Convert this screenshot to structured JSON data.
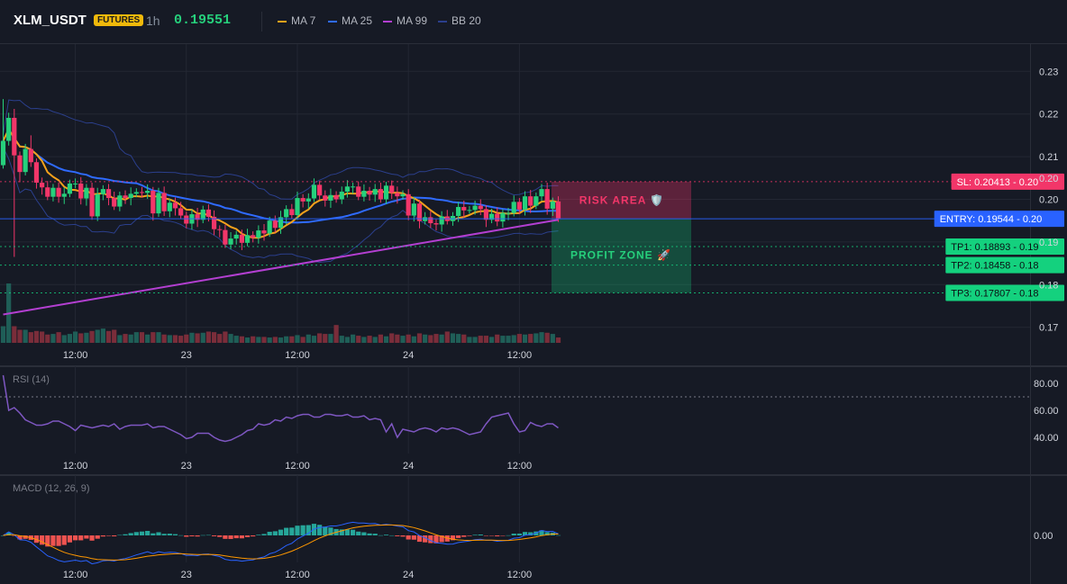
{
  "header": {
    "symbol": "XLM_USDT",
    "badge": "FUTURES",
    "timeframe": "1h",
    "price": "0.19551",
    "legend": [
      {
        "label": "MA 7",
        "color": "#f7a21b"
      },
      {
        "label": "MA 25",
        "color": "#2f6bff"
      },
      {
        "label": "MA 99",
        "color": "#b33fd1"
      },
      {
        "label": "BB 20",
        "color": "#2b3f8c"
      }
    ]
  },
  "colors": {
    "up": "#26d07c",
    "down": "#f23669",
    "vol_up": "#1f5e57",
    "vol_down": "#7a2d3a",
    "grid": "#232733",
    "axis_text": "#d1d4dc",
    "rsi": "#7e57c2",
    "macd_line": "#2962ff",
    "signal_line": "#ff9800",
    "hist_pos": "#26a69a",
    "hist_neg": "#ef5350"
  },
  "chart_data": [
    {
      "type": "candlestick",
      "title": "XLM_USDT 1h",
      "ylim": [
        0.165,
        0.235
      ],
      "y_ticks": [
        {
          "v": 0.17,
          "label": "0.17"
        },
        {
          "v": 0.18,
          "label": "0.18"
        },
        {
          "v": 0.19,
          "label": "0.19"
        },
        {
          "v": 0.2,
          "label": "0.20"
        },
        {
          "v": 0.205,
          "label": "0.20"
        },
        {
          "v": 0.21,
          "label": "0.21"
        },
        {
          "v": 0.22,
          "label": "0.22"
        },
        {
          "v": 0.23,
          "label": "0.23"
        }
      ],
      "x_ticks": [
        {
          "i": 13,
          "label": "12:00"
        },
        {
          "i": 33,
          "label": "23"
        },
        {
          "i": 53,
          "label": "12:00"
        },
        {
          "i": 73,
          "label": "24"
        },
        {
          "i": 93,
          "label": "12:00"
        }
      ],
      "close": [
        0.2137,
        0.2191,
        0.2103,
        0.2064,
        0.2118,
        0.2087,
        0.2039,
        0.2028,
        0.2006,
        0.2027,
        0.2006,
        0.2013,
        0.2037,
        0.2037,
        0.2002,
        0.2027,
        0.196,
        0.2012,
        0.2024,
        0.2003,
        0.1983,
        0.2009,
        0.2003,
        0.2013,
        0.2017,
        0.2015,
        0.202,
        0.1967,
        0.2015,
        0.1972,
        0.1992,
        0.1979,
        0.1962,
        0.1943,
        0.1965,
        0.1952,
        0.1976,
        0.1959,
        0.193,
        0.1928,
        0.1894,
        0.1908,
        0.1917,
        0.1898,
        0.1916,
        0.191,
        0.1927,
        0.192,
        0.195,
        0.1933,
        0.1958,
        0.1977,
        0.1963,
        0.2003,
        0.1995,
        0.2002,
        0.2034,
        0.2009,
        0.1997,
        0.201,
        0.2,
        0.2018,
        0.203,
        0.203,
        0.2006,
        0.202,
        0.2011,
        0.2024,
        0.2,
        0.2032,
        0.2015,
        0.2007,
        0.2012,
        0.1962,
        0.199,
        0.1949,
        0.1958,
        0.1944,
        0.1941,
        0.196,
        0.1949,
        0.1961,
        0.1982,
        0.1974,
        0.1975,
        0.1985,
        0.1977,
        0.1952,
        0.1966,
        0.1948,
        0.1968,
        0.1968,
        0.1994,
        0.1976,
        0.2007,
        0.1985,
        0.2007,
        0.2024,
        0.1978,
        0.1995,
        0.1955
      ],
      "volume": [
        0.28,
        1.0,
        0.28,
        0.22,
        0.22,
        0.18,
        0.2,
        0.19,
        0.14,
        0.15,
        0.18,
        0.13,
        0.15,
        0.19,
        0.16,
        0.17,
        0.2,
        0.22,
        0.24,
        0.2,
        0.22,
        0.13,
        0.15,
        0.14,
        0.18,
        0.18,
        0.14,
        0.18,
        0.18,
        0.14,
        0.13,
        0.13,
        0.12,
        0.14,
        0.17,
        0.16,
        0.17,
        0.19,
        0.18,
        0.15,
        0.19,
        0.15,
        0.12,
        0.11,
        0.09,
        0.11,
        0.1,
        0.1,
        0.09,
        0.1,
        0.09,
        0.11,
        0.11,
        0.13,
        0.1,
        0.14,
        0.12,
        0.16,
        0.15,
        0.15,
        0.3,
        0.12,
        0.1,
        0.14,
        0.12,
        0.1,
        0.12,
        0.1,
        0.14,
        0.11,
        0.16,
        0.14,
        0.12,
        0.14,
        0.11,
        0.16,
        0.14,
        0.13,
        0.15,
        0.14,
        0.19,
        0.16,
        0.15,
        0.14,
        0.1,
        0.1,
        0.12,
        0.12,
        0.1,
        0.14,
        0.12,
        0.12,
        0.13,
        0.15,
        0.14,
        0.15,
        0.16,
        0.18,
        0.17,
        0.15,
        0.09
      ]
    },
    {
      "type": "line",
      "name": "RSI (14)",
      "ylim": [
        30,
        90
      ],
      "y_ticks": [
        {
          "v": 80,
          "label": "80.00"
        },
        {
          "v": 60,
          "label": "60.00"
        },
        {
          "v": 40,
          "label": "40.00"
        }
      ],
      "overbought": 70,
      "values": [
        86,
        60,
        62,
        58,
        53,
        51,
        49,
        49,
        50,
        52,
        52,
        50,
        48,
        45,
        49,
        48,
        47,
        48,
        49,
        48,
        50,
        46,
        48,
        49,
        49,
        49,
        50,
        47,
        48,
        48,
        46,
        44,
        42,
        39,
        40,
        43,
        43,
        43,
        40,
        38,
        37,
        38,
        40,
        42,
        45,
        46,
        50,
        49,
        50,
        53,
        52,
        55,
        54,
        56,
        57,
        57,
        55,
        55,
        57,
        57,
        56,
        56,
        57,
        55,
        55,
        56,
        53,
        54,
        53,
        44,
        50,
        40,
        46,
        45,
        44,
        46,
        47,
        46,
        44,
        47,
        46,
        47,
        46,
        44,
        42,
        43,
        44,
        50,
        55,
        56,
        57,
        58,
        50,
        44,
        45,
        51,
        49,
        48,
        50,
        50,
        47
      ]
    },
    {
      "type": "line",
      "name": "MACD (12, 26, 9)",
      "ylim": [
        -0.003,
        0.004
      ],
      "y_ticks": [
        {
          "v": 0,
          "label": "0.00"
        }
      ]
    }
  ],
  "annotations": {
    "risk_area": "RISK AREA 🛡️",
    "profit_zone": "PROFIT ZONE 🚀",
    "levels": [
      {
        "key": "sl",
        "text": "SL: 0.20413 - 0.20",
        "v": 0.20413,
        "bg": "#f23669",
        "fg": "#ffffff"
      },
      {
        "key": "entry",
        "text": "ENTRY: 0.19544 - 0.20",
        "v": 0.19544,
        "bg": "#2962ff",
        "fg": "#ffffff"
      },
      {
        "key": "tp1",
        "text": "TP1: 0.18893 - 0.19",
        "v": 0.18893,
        "bg": "#14d17e",
        "fg": "#0b0f14"
      },
      {
        "key": "tp2",
        "text": "TP2: 0.18458 - 0.18",
        "v": 0.18458,
        "bg": "#14d17e",
        "fg": "#0b0f14"
      },
      {
        "key": "tp3",
        "text": "TP3: 0.17807 - 0.18",
        "v": 0.17807,
        "bg": "#14d17e",
        "fg": "#0b0f14"
      }
    ]
  }
}
